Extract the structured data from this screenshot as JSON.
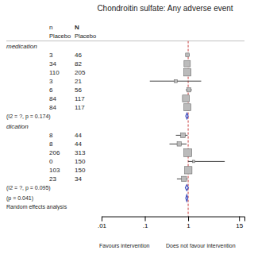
{
  "chart_data": {
    "type": "forest",
    "title": "Chondroitin sulfate: Any adverse event",
    "columns": [
      {
        "header": "n",
        "subheader": "Placebo"
      },
      {
        "header": "N",
        "subheader": "Placebo"
      }
    ],
    "groups": [
      {
        "label": "medication",
        "color": "#444444",
        "rows": [
          {
            "counts": [
              3,
              46
            ],
            "value": 0.96,
            "ci_low": 0.88,
            "ci_high": 1.08,
            "weight": 1.5
          },
          {
            "counts": [
              34,
              82
            ],
            "value": 0.95,
            "ci_low": 0.9,
            "ci_high": 1.0,
            "weight": 4.5
          },
          {
            "counts": [
              110,
              205
            ],
            "value": 0.96,
            "ci_low": 0.92,
            "ci_high": 1.0,
            "weight": 6.0
          },
          {
            "counts": [
              3,
              21
            ],
            "value": 0.52,
            "ci_low": 0.13,
            "ci_high": 2.0,
            "weight": 1.0
          },
          {
            "counts": [
              6,
              56
            ],
            "value": 1.04,
            "ci_low": 0.88,
            "ci_high": 1.22,
            "weight": 2.0
          },
          {
            "counts": [
              84,
              117
            ],
            "value": 0.89,
            "ci_low": 0.82,
            "ci_high": 0.97,
            "weight": 5.5
          },
          {
            "counts": [
              84,
              117
            ],
            "value": 0.96,
            "ci_low": 0.9,
            "ci_high": 1.02,
            "weight": 5.5
          }
        ],
        "summary": {
          "value": 0.94,
          "ci_low": 0.88,
          "ci_high": 1.0,
          "color": "#3344bb"
        },
        "stat_label": "(I2 = ?, p = 0.174)"
      },
      {
        "label": "dication",
        "color": "#444444",
        "rows": [
          {
            "counts": [
              8,
              44
            ],
            "value": 0.76,
            "ci_low": 0.52,
            "ci_high": 0.97,
            "weight": 2.5
          },
          {
            "counts": [
              8,
              44
            ],
            "value": 0.62,
            "ci_low": 0.37,
            "ci_high": 0.92,
            "weight": 2.0
          },
          {
            "counts": [
              206,
              313
            ],
            "value": 0.98,
            "ci_low": 0.94,
            "ci_high": 1.02,
            "weight": 7.0
          },
          {
            "counts": [
              0,
              150
            ],
            "value": 1.35,
            "ci_low": 1.0,
            "ci_high": 7.0,
            "weight": 0.5
          },
          {
            "counts": [
              103,
              150
            ],
            "value": 1.01,
            "ci_low": 0.94,
            "ci_high": 1.08,
            "weight": 6.0
          },
          {
            "counts": [
              23,
              34
            ],
            "value": 0.8,
            "ci_low": 0.55,
            "ci_high": 0.97,
            "weight": 3.0
          }
        ],
        "summary": {
          "value": 0.93,
          "ci_low": 0.86,
          "ci_high": 1.01,
          "color": "#3344bb"
        },
        "stat_label": "(I2 = ?, p = 0.095)"
      }
    ],
    "overall": {
      "value": 0.93,
      "ci_low": 0.88,
      "ci_high": 0.98,
      "color": "#3344bb",
      "stat_label": "(p = 0.041)"
    },
    "random_label": "Random effects analysis",
    "reference": {
      "value": 1,
      "color": "#cc4444"
    },
    "xlabel_left": "Favours intervention",
    "xlabel_right": "Does not favour intervention",
    "log": "x",
    "grid": false,
    "xlim": [
      0.01,
      20
    ],
    "xticks": [
      {
        "value": 0.01,
        "label": ".01"
      },
      {
        "value": 0.1,
        "label": ".1"
      },
      1,
      15
    ]
  }
}
